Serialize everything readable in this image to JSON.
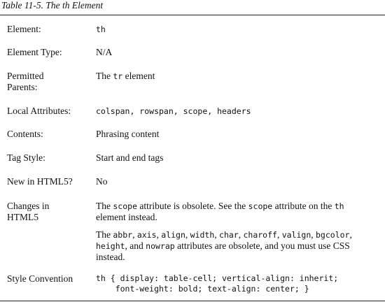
{
  "caption": "Table 11-5. The th Element",
  "table": {
    "rows": [
      {
        "label": "Element:",
        "value": [
          [
            "th"
          ]
        ]
      },
      {
        "label": "Element Type:",
        "value": [
          [
            "N/A"
          ]
        ]
      },
      {
        "label": "Permitted Parents:",
        "value": [
          [
            "The ",
            "tr",
            " element"
          ]
        ]
      },
      {
        "label": "Local Attributes:",
        "value": [
          [
            "colspan, rowspan, scope, headers"
          ]
        ]
      },
      {
        "label": "Contents:",
        "value": [
          [
            "Phrasing content"
          ]
        ]
      },
      {
        "label": "Tag Style:",
        "value": [
          [
            "Start and end tags"
          ]
        ]
      },
      {
        "label": "New in HTML5?",
        "value": [
          [
            "No"
          ]
        ]
      },
      {
        "label": "Changes in HTML5",
        "value": [
          [
            "The ",
            "scope",
            " attribute is obsolete. See the ",
            "scope",
            " attribute on the ",
            "th",
            " element instead."
          ],
          [
            "The ",
            "abbr",
            ", ",
            "axis",
            ", ",
            "align",
            ", ",
            "width",
            ", ",
            "char",
            ", ",
            "charoff",
            ", ",
            "valign",
            ", ",
            "bgcolor",
            ", ",
            "height",
            ", and ",
            "nowrap",
            " attributes are obsolete, and you must use CSS instead."
          ]
        ]
      },
      {
        "label": "Style Convention",
        "value": [
          [
            "th { display: table-cell; vertical-align: inherit;\n    font-weight: bold; text-align: center; }"
          ]
        ]
      }
    ]
  }
}
